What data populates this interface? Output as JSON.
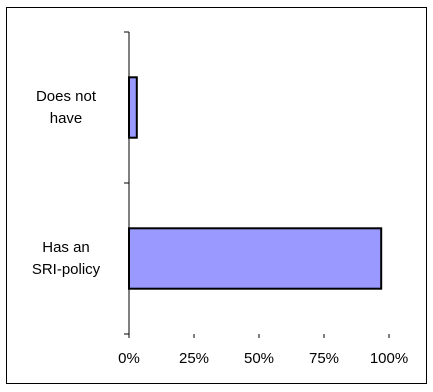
{
  "chart_data": {
    "type": "bar",
    "orientation": "horizontal",
    "categories": [
      "Does not\nhave",
      "Has an\nSRI-policy"
    ],
    "values": [
      3,
      97
    ],
    "xlim": [
      0,
      100
    ],
    "xticks": [
      "0%",
      "25%",
      "50%",
      "75%",
      "100%"
    ],
    "title": "",
    "xlabel": "",
    "ylabel": "",
    "grid": false,
    "legend": "none",
    "bar_color": "#9999ff",
    "bar_edge_color": "#000000"
  }
}
